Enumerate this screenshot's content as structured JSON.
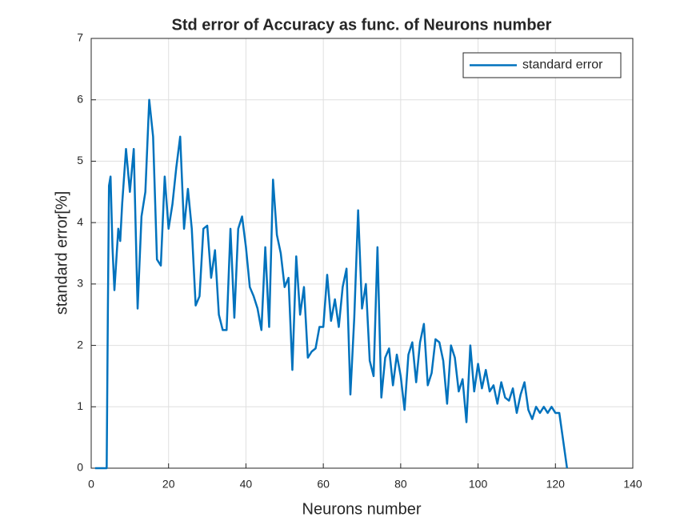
{
  "chart_data": {
    "type": "line",
    "title": "Std error of Accuracy as func. of Neurons number",
    "xlabel": "Neurons number",
    "ylabel": "standard error[%]",
    "x": [
      1,
      2,
      3,
      4,
      4.3,
      4.6,
      5,
      5.5,
      6,
      7,
      7.5,
      8,
      9,
      10,
      11,
      12,
      13,
      14,
      15,
      16,
      17,
      18,
      19,
      20,
      21,
      22,
      23,
      24,
      25,
      26,
      27,
      28,
      29,
      30,
      31,
      32,
      33,
      34,
      35,
      36,
      37,
      38,
      39,
      40,
      41,
      42,
      43,
      44,
      45,
      46,
      47,
      48,
      49,
      50,
      51,
      52,
      53,
      54,
      55,
      56,
      57,
      58,
      59,
      60,
      61,
      62,
      63,
      64,
      65,
      66,
      67,
      68,
      69,
      70,
      71,
      72,
      73,
      74,
      75,
      76,
      77,
      78,
      79,
      80,
      81,
      82,
      83,
      84,
      85,
      86,
      87,
      88,
      89,
      90,
      91,
      92,
      93,
      94,
      95,
      96,
      97,
      98,
      99,
      100,
      101,
      102,
      103,
      104,
      105,
      106,
      107,
      108,
      109,
      110,
      111,
      112,
      113,
      114,
      115,
      116,
      117,
      118,
      119,
      120,
      121,
      122,
      123
    ],
    "series": [
      {
        "name": "standard error",
        "color": "#0072bd",
        "values": [
          0,
          0,
          0,
          0,
          2.5,
          4.6,
          4.75,
          3.6,
          2.9,
          3.9,
          3.7,
          4.3,
          5.2,
          4.5,
          5.2,
          2.6,
          4.1,
          4.5,
          6.0,
          5.4,
          3.4,
          3.3,
          4.75,
          3.9,
          4.3,
          4.9,
          5.4,
          3.9,
          4.55,
          3.9,
          2.65,
          2.8,
          3.9,
          3.95,
          3.1,
          3.55,
          2.5,
          2.25,
          2.25,
          3.9,
          2.45,
          3.9,
          4.1,
          3.6,
          2.95,
          2.8,
          2.6,
          2.25,
          3.6,
          2.3,
          4.7,
          3.8,
          3.5,
          2.95,
          3.1,
          1.6,
          3.45,
          2.5,
          2.95,
          1.8,
          1.9,
          1.95,
          2.3,
          2.3,
          3.15,
          2.4,
          2.75,
          2.3,
          2.95,
          3.25,
          1.2,
          2.45,
          4.2,
          2.6,
          3.0,
          1.75,
          1.5,
          3.6,
          1.15,
          1.8,
          1.95,
          1.35,
          1.85,
          1.5,
          0.95,
          1.85,
          2.05,
          1.4,
          2.05,
          2.35,
          1.35,
          1.55,
          2.1,
          2.05,
          1.75,
          1.05,
          2.0,
          1.8,
          1.25,
          1.45,
          0.75,
          2.0,
          1.25,
          1.7,
          1.3,
          1.6,
          1.25,
          1.35,
          1.05,
          1.4,
          1.15,
          1.1,
          1.3,
          0.9,
          1.2,
          1.4,
          0.95,
          0.8,
          1.0,
          0.9,
          1.0,
          0.9,
          1.0,
          0.9,
          0.9,
          0.45,
          0
        ]
      }
    ],
    "xlim": [
      0,
      140
    ],
    "xticks": [
      0,
      20,
      40,
      60,
      80,
      100,
      120,
      140
    ],
    "ylim": [
      0,
      7
    ],
    "yticks": [
      0,
      1,
      2,
      3,
      4,
      5,
      6,
      7
    ],
    "grid": true,
    "legend": "top-right"
  }
}
